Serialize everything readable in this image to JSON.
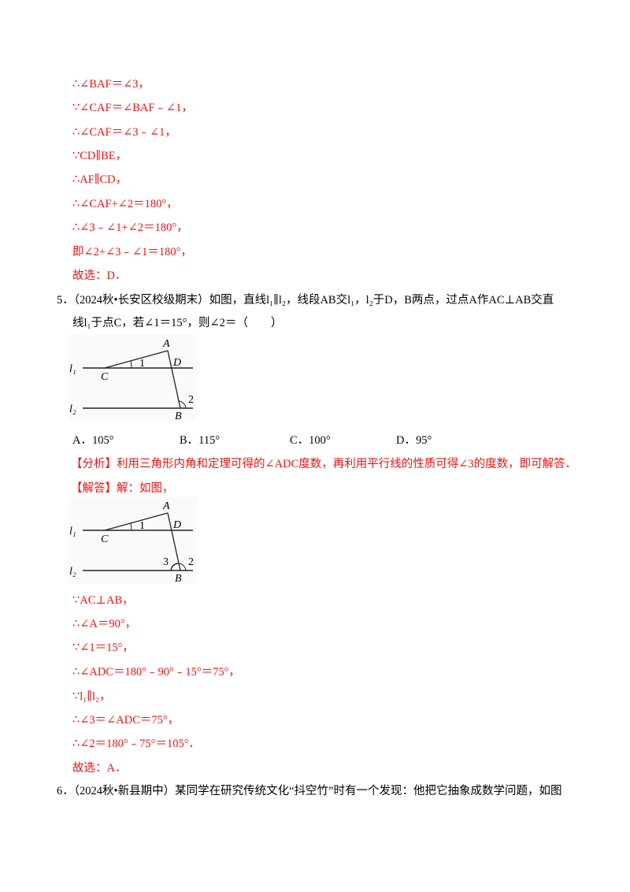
{
  "prev_solution": [
    "∴∠BAF＝∠3，",
    "∵∠CAF＝∠BAF﹣∠1，",
    "∴∠CAF＝∠3﹣∠1，",
    "∵CD∥BE，",
    "∴AF∥CD，",
    "∴∠CAF+∠2＝180°，",
    "∴∠3﹣∠1+∠2＝180°，",
    "即∠2+∠3﹣∠1＝180°，",
    "故选：D．"
  ],
  "q5": {
    "line1": "5．（2024秋•长安区校级期末）如图，直线l₁∥l₂，线段AB交l₁，l₂于D，B两点，过点A作AC⊥AB交直",
    "line2": "线l₁于点C，若∠1＝15°，则∠2＝（　　）",
    "figure_labels": {
      "A": "A",
      "B": "B",
      "C": "C",
      "D": "D",
      "l1": "l₁",
      "l2": "l₂",
      "a1": "1",
      "a2": "2",
      "a3": "3"
    },
    "options": [
      "A．105°",
      "B．115°",
      "C．100°",
      "D．95°"
    ],
    "analysis": "【分析】利用三角形内角和定理可得的∠ADC度数，再利用平行线的性质可得∠3的度数，即可解答．",
    "answer_head": "【解答】解：如图，",
    "solution": [
      "∵AC⊥AB，",
      "∴∠A＝90°，",
      "∵∠1＝15°，",
      "∴∠ADC＝180°﹣90°﹣15°＝75°，",
      "∵l₁∥l₂，",
      "∴∠3＝∠ADC＝75°，",
      "∴∠2＝180°﹣75°＝105°．",
      "故选：A．"
    ]
  },
  "q6": {
    "line1": "6．（2024秋•新县期中）某同学在研究传统文化“抖空竹”时有一个发现：他把它抽象成数学问题，如图"
  },
  "colors": {
    "answer_red": "#f01010",
    "text": "#000000"
  }
}
